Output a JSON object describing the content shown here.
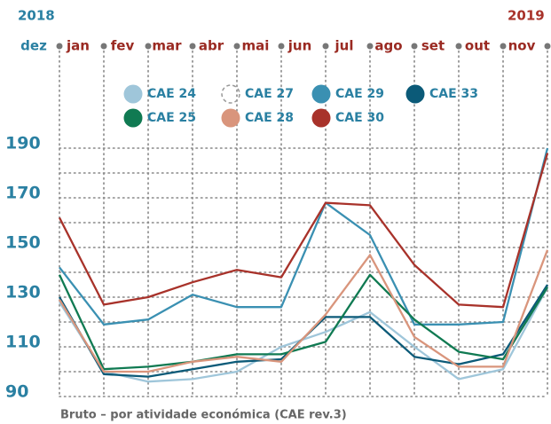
{
  "chart_data": {
    "type": "line",
    "start_year": "2018",
    "end_year": "2019",
    "subtitle": "Bruto – por atividade económica (CAE rev.3)",
    "categories": [
      "dez",
      "jan",
      "fev",
      "mar",
      "abr",
      "mai",
      "jun",
      "jul",
      "ago",
      "set",
      "out",
      "nov"
    ],
    "ylim": [
      90,
      190
    ],
    "yticks": [
      90,
      110,
      130,
      150,
      170,
      190
    ],
    "yminor": [
      100,
      120,
      140,
      160,
      180
    ],
    "grid": true,
    "series": [
      {
        "name": "CAE 24",
        "color": "#9fc6da",
        "values": [
          128,
          100,
          96,
          97,
          100,
          110,
          116,
          124,
          110,
          97,
          101,
          134
        ]
      },
      {
        "name": "CAE 27",
        "color": "#999999",
        "dashed": true,
        "values": [
          null,
          null,
          null,
          null,
          null,
          null,
          null,
          null,
          null,
          null,
          null,
          null
        ]
      },
      {
        "name": "CAE 29",
        "color": "#3a90b2",
        "values": [
          142,
          119,
          121,
          131,
          126,
          126,
          168,
          155,
          119,
          119,
          120,
          190
        ]
      },
      {
        "name": "CAE 33",
        "color": "#0b5a78",
        "values": [
          130,
          99,
          98,
          101,
          104,
          105,
          122,
          122,
          106,
          103,
          107,
          135
        ]
      },
      {
        "name": "CAE 25",
        "color": "#107a52",
        "values": [
          139,
          101,
          102,
          104,
          107,
          107,
          112,
          139,
          121,
          108,
          105,
          134
        ]
      },
      {
        "name": "CAE 28",
        "color": "#d9957c",
        "values": [
          129,
          100,
          100,
          104,
          106,
          104,
          123,
          147,
          114,
          102,
          102,
          149
        ]
      },
      {
        "name": "CAE 30",
        "color": "#a8322a",
        "values": [
          162,
          127,
          130,
          136,
          141,
          138,
          168,
          167,
          143,
          127,
          126,
          188
        ]
      }
    ]
  }
}
